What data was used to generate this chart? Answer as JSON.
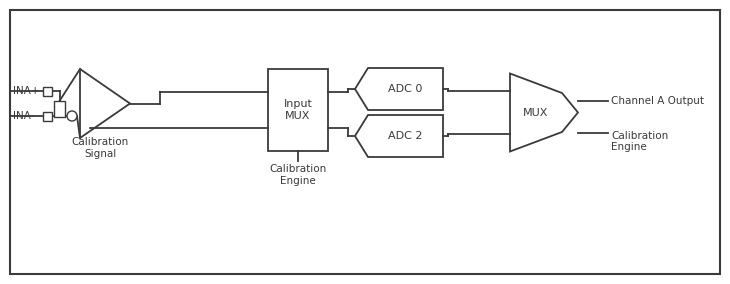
{
  "bg_color": "#ffffff",
  "line_color": "#3a3a3a",
  "border_color": "#3a3a3a",
  "text_color": "#3a3a3a",
  "figsize": [
    7.3,
    2.84
  ],
  "dpi": 100,
  "labels": {
    "ina_plus": "INA+",
    "ina_minus": "INA-",
    "cal_signal": "Calibration\nSignal",
    "input_mux": "Input\nMUX",
    "cal_engine_bottom": "Calibration\nEngine",
    "adc0": "ADC 0",
    "adc2": "ADC 2",
    "mux": "MUX",
    "ch_a_output": "Channel A Output",
    "cal_engine_right": "Calibration\nEngine"
  },
  "fontsize_label": 7.5,
  "fontsize_block": 8.0,
  "lw": 1.3
}
